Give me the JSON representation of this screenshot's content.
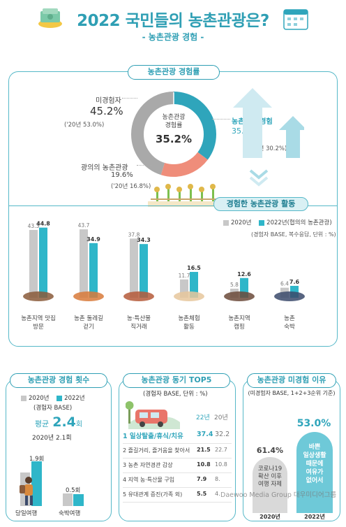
{
  "header": {
    "title": "2022 국민들의 농촌관광은?",
    "subtitle": "- 농촌관광 경험 -"
  },
  "experience_rate": {
    "section_title": "농촌관광 경험률",
    "donut_center_label": "농촌관광\n경험률",
    "donut_center_value": "35.2%",
    "non_experienced_label": "미경험자",
    "non_experienced_value": "45.2%",
    "non_experienced_prev": "('20년 53.0%)",
    "experienced_label": "농촌관광 경험",
    "experienced_value": "35.2%",
    "experienced_prev": "('20년 30.2%)",
    "broad_label": "광의의 농촌관광",
    "broad_value": "19.6%",
    "broad_prev": "('20년 16.8%)",
    "colors": {
      "teal": "#2fa5bb",
      "grey": "#a9a9a9",
      "salmon": "#ef8d7a"
    }
  },
  "activities": {
    "section_title": "경험한 농촌관광 활동",
    "legend_2020": "2020년",
    "legend_2022": "2022년(협의의 농촌관광)",
    "note": "(경험자 BASE, 복수응답, 단위 : %)"
  },
  "count_section": {
    "title": "농촌관광 경험 횟수",
    "legend_2020": "2020년",
    "legend_2022": "2022년",
    "base": "(경험자 BASE)",
    "avg_label": "평균",
    "avg_value": "2.4",
    "avg_unit": "회",
    "avg_prev": "2020년 2.1회",
    "bars": [
      {
        "label": "당일여행",
        "v2022": "1.9회"
      },
      {
        "label": "숙박여행",
        "v2022": "0.5회"
      }
    ]
  },
  "motive_section": {
    "title": "농촌관광 동기 TOP5",
    "base": "(경험자 BASE, 단위 : %)",
    "col_22": "22년",
    "col_20": "20년",
    "rows": [
      {
        "rank": "1",
        "label": "일상탈출/휴식/치유",
        "v22": "37.4",
        "v20": "32.2"
      },
      {
        "rank": "2",
        "label": "즐길거리, 즐거움을 찾아서",
        "v22": "21.5",
        "v20": "22.7"
      },
      {
        "rank": "3",
        "label": "농촌 자연경관 감상",
        "v22": "10.8",
        "v20": "10.8"
      },
      {
        "rank": "4",
        "label": "지역 농·특산물 구입",
        "v22": "7.9",
        "v20": "8."
      },
      {
        "rank": "5",
        "label": "유대관계 증진(가족 외)",
        "v22": "5.5",
        "v20": "4."
      }
    ]
  },
  "reason_section": {
    "title": "농촌관광 미경험 이유",
    "base": "(미경험자 BASE, 1+2+3순위 기준)",
    "v2020": "61.4%",
    "v2022": "53.0%",
    "label_2020": "코로나19\n확산 이후\n여행 자제",
    "label_2022": "바쁜\n일상생활\n때문에\n여유가\n없어서",
    "year_2020": "2020년",
    "year_2022": "2022년"
  },
  "watermark": "Daewoo Media Group 대우미디어그룹",
  "chart_data": {
    "type": "bar",
    "title": "경험한 농촌관광 활동",
    "categories": [
      "농촌지역 맛집 방문",
      "농촌 둘레길 걷기",
      "농·특산물 직거래",
      "농촌체험 활동",
      "농촌지역 캠핑",
      "농촌 숙박"
    ],
    "ylim": [
      0,
      50
    ],
    "series": [
      {
        "name": "2020년",
        "color": "#c8c8c8",
        "values": [
          43.3,
          43.7,
          37.8,
          11.7,
          5.8,
          6.4
        ]
      },
      {
        "name": "2022년(협의의 농촌관광)",
        "color": "#2fb6c9",
        "values": [
          44.8,
          34.9,
          34.3,
          16.5,
          12.6,
          7.6
        ]
      }
    ]
  }
}
